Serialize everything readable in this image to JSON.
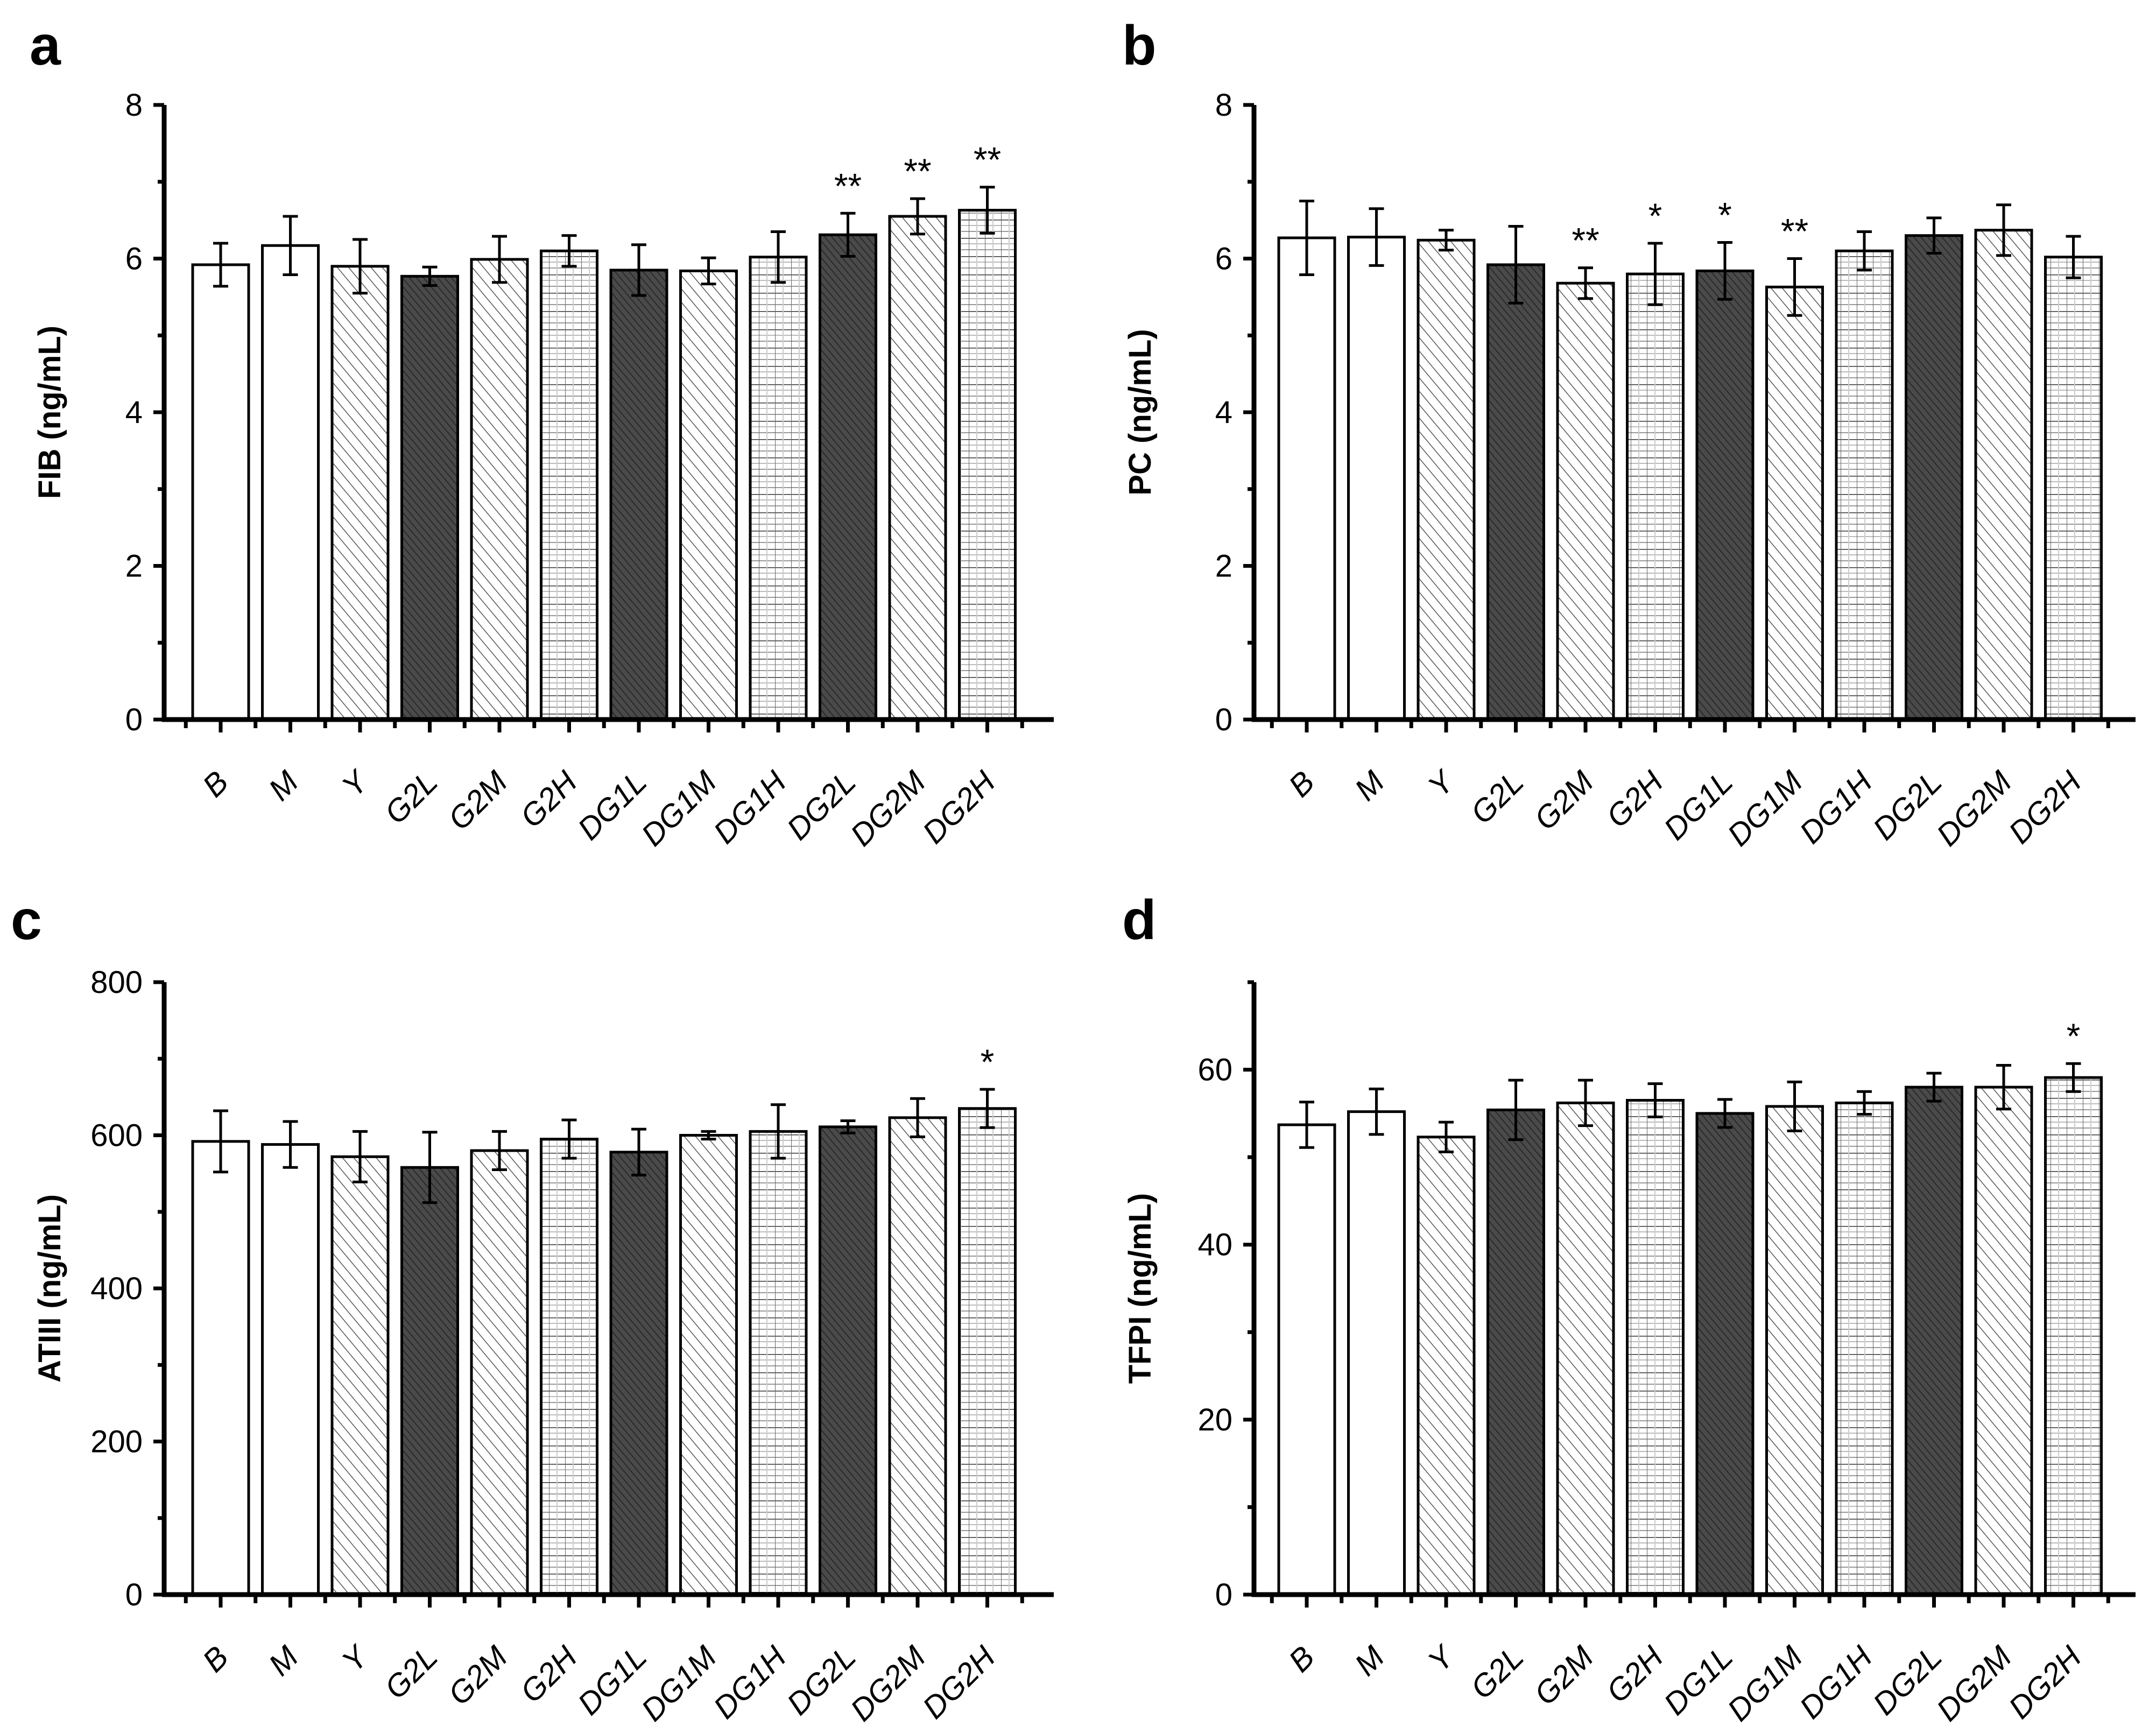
{
  "chart_data": [
    {
      "type": "bar",
      "panel_label": "a",
      "ylabel": "FIB (ng/mL)",
      "ylim": [
        0,
        8
      ],
      "yticks": [
        "0",
        "2",
        "4",
        "6",
        "8"
      ],
      "categories": [
        "B",
        "M",
        "Y",
        "G2L",
        "G2M",
        "G2H",
        "DG1L",
        "DG1M",
        "DG1H",
        "DG2L",
        "DG2M",
        "DG2H"
      ],
      "values": [
        5.92,
        6.17,
        5.9,
        5.77,
        5.99,
        6.1,
        5.85,
        5.84,
        6.02,
        6.31,
        6.55,
        6.63
      ],
      "errors": [
        0.28,
        0.38,
        0.35,
        0.12,
        0.3,
        0.2,
        0.33,
        0.17,
        0.33,
        0.28,
        0.23,
        0.3
      ],
      "significance": [
        "",
        "",
        "",
        "",
        "",
        "",
        "",
        "",
        "",
        "**",
        "**",
        "**"
      ]
    },
    {
      "type": "bar",
      "panel_label": "b",
      "ylabel": "PC (ng/mL)",
      "ylim": [
        0,
        8
      ],
      "yticks": [
        "0",
        "2",
        "4",
        "6",
        "8"
      ],
      "categories": [
        "B",
        "M",
        "Y",
        "G2L",
        "G2M",
        "G2H",
        "DG1L",
        "DG1M",
        "DG1H",
        "DG2L",
        "DG2M",
        "DG2H"
      ],
      "values": [
        6.27,
        6.28,
        6.24,
        5.92,
        5.68,
        5.8,
        5.84,
        5.63,
        6.1,
        6.3,
        6.37,
        6.02
      ],
      "errors": [
        0.48,
        0.37,
        0.13,
        0.5,
        0.2,
        0.4,
        0.37,
        0.37,
        0.25,
        0.23,
        0.33,
        0.27
      ],
      "significance": [
        "",
        "",
        "",
        "",
        "**",
        "*",
        "*",
        "**",
        "",
        "",
        "",
        ""
      ]
    },
    {
      "type": "bar",
      "panel_label": "c",
      "ylabel": "ATIII (ng/mL)",
      "ylim": [
        0,
        800
      ],
      "yticks": [
        "0",
        "200",
        "400",
        "600",
        "800"
      ],
      "categories": [
        "B",
        "M",
        "Y",
        "G2L",
        "G2M",
        "G2H",
        "DG1L",
        "DG1M",
        "DG1H",
        "DG2L",
        "DG2M",
        "DG2H"
      ],
      "values": [
        592,
        588,
        572,
        558,
        580,
        595,
        578,
        600,
        605,
        611,
        623,
        635
      ],
      "errors": [
        40,
        30,
        33,
        46,
        25,
        25,
        30,
        5,
        35,
        8,
        25,
        25
      ],
      "significance": [
        "",
        "",
        "",
        "",
        "",
        "",
        "",
        "",
        "",
        "",
        "",
        "*"
      ]
    },
    {
      "type": "bar",
      "panel_label": "d",
      "ylabel": "TFPI (ng/mL)",
      "ylim": [
        0,
        70
      ],
      "yticks": [
        "0",
        "20",
        "40",
        "60"
      ],
      "categories": [
        "B",
        "M",
        "Y",
        "G2L",
        "G2M",
        "G2H",
        "DG1L",
        "DG1M",
        "DG1H",
        "DG2L",
        "DG2M",
        "DG2H"
      ],
      "values": [
        53.7,
        55.2,
        52.3,
        55.4,
        56.2,
        56.5,
        55.0,
        55.8,
        56.2,
        58.0,
        58.0,
        59.1
      ],
      "errors": [
        2.6,
        2.6,
        1.7,
        3.4,
        2.6,
        1.9,
        1.6,
        2.8,
        1.3,
        1.6,
        2.5,
        1.6
      ],
      "significance": [
        "",
        "",
        "",
        "",
        "",
        "",
        "",
        "",
        "",
        "",
        "",
        "*"
      ]
    }
  ],
  "pattern_names": [
    "blank",
    "blank",
    "diag",
    "dark",
    "diag",
    "grid",
    "dark",
    "diag",
    "grid",
    "dark",
    "diag",
    "grid"
  ]
}
